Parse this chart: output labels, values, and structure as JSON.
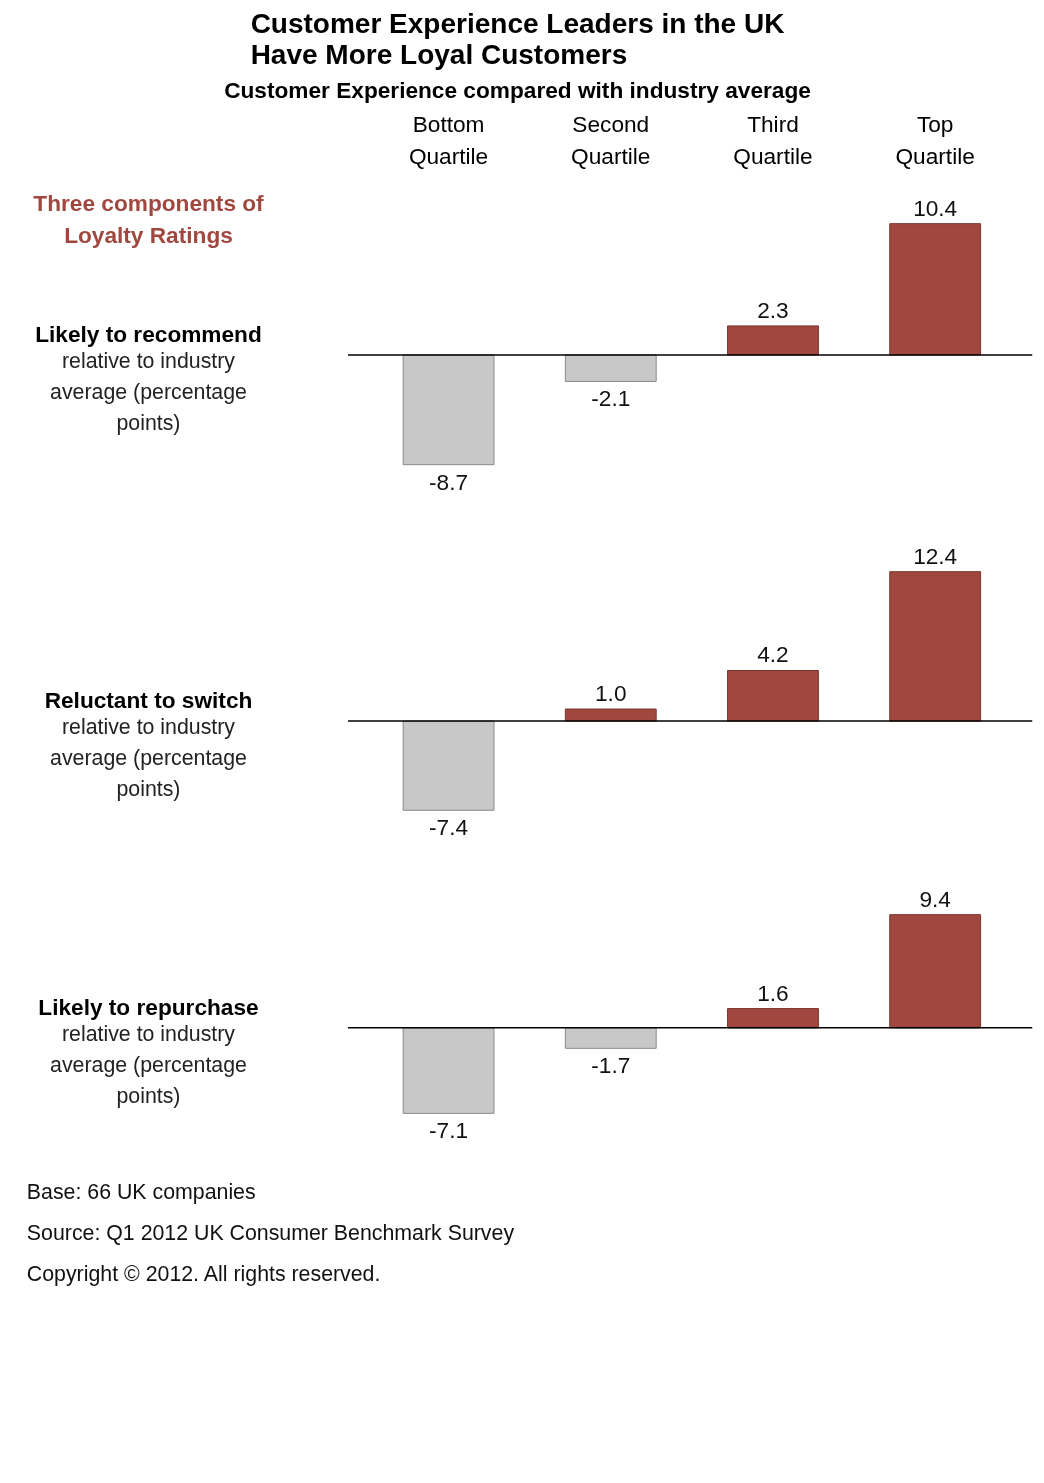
{
  "chart_data": [
    {
      "type": "bar",
      "title": "Customer Experience Leaders in the UK\nHave More Loyal Customers",
      "xlabel": "Customer Experience compared with industry average",
      "subtitle": "Likely to recommend",
      "ylabel": "relative to industry average (percentage points)",
      "categories": [
        "Bottom Quartile",
        "Second Quartile",
        "Third Quartile",
        "Top Quartile"
      ],
      "values": [
        -8.7,
        -2.1,
        2.3,
        10.4
      ],
      "colors": [
        "#c8c8c8",
        "#c8c8c8",
        "#a0483f",
        "#a0483f"
      ],
      "data_labels": true,
      "tick_labels": "x",
      "annotations": [
        "Three components of Loyalty Ratings"
      ]
    },
    {
      "type": "bar",
      "subtitle": "Reluctant to switch",
      "ylabel": "relative to industry average (percentage points)",
      "categories": [
        null,
        null,
        null,
        null
      ],
      "values": [
        -7.4,
        1.0,
        4.2,
        12.4
      ],
      "value_labels": [
        "-7.4",
        "1.0",
        "4.2",
        "12.4"
      ],
      "colors": [
        "#c8c8c8",
        "#a0483f",
        "#a0483f",
        "#a0483f"
      ],
      "tick_labels": false
    },
    {
      "type": "bar",
      "subtitle": "Likely to repurchase",
      "ylabel": "relative to industry average (percentage points)",
      "categories": [
        null,
        null,
        null,
        null
      ],
      "values": [
        -7.1,
        -1.7,
        1.6,
        9.4
      ],
      "colors": [
        "#c8c8c8",
        "#c8c8c8",
        "#a0483f",
        "#a0483f"
      ],
      "data_labels": true,
      "tick_labels": false,
      "annotations": [
        "Base:      66 UK companies",
        "Source:   Q1 2012 UK Consumer Benchmark Survey",
        "Copyright © 2012. All rights reserved."
      ]
    }
  ]
}
